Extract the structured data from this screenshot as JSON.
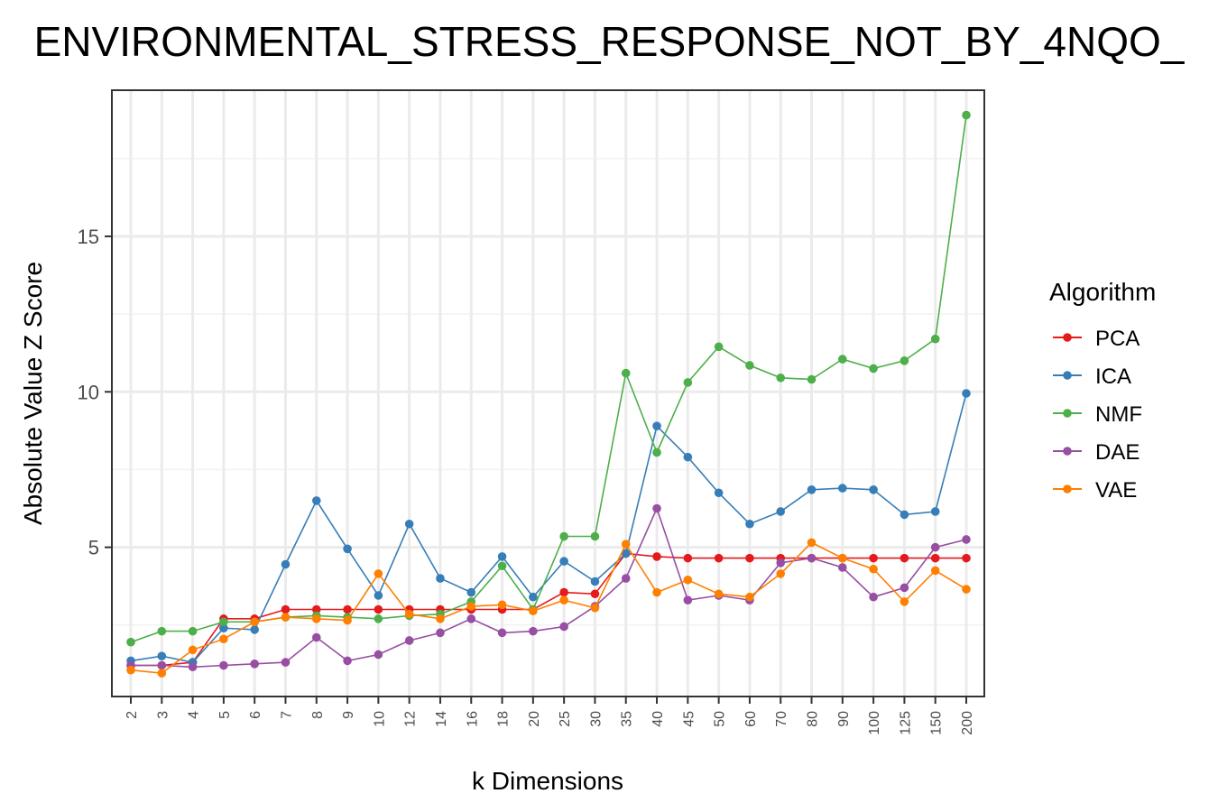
{
  "chart_data": {
    "type": "line",
    "title": "ENVIRONMENTAL_STRESS_RESPONSE_NOT_BY_4NQO_",
    "xlabel": "k Dimensions",
    "ylabel": "Absolute Value Z Score",
    "categories": [
      "2",
      "3",
      "4",
      "5",
      "6",
      "7",
      "8",
      "9",
      "10",
      "12",
      "14",
      "16",
      "18",
      "20",
      "25",
      "30",
      "35",
      "40",
      "45",
      "50",
      "60",
      "70",
      "80",
      "90",
      "100",
      "125",
      "150",
      "200"
    ],
    "yticks": [
      5,
      10,
      15
    ],
    "ylim": [
      0.2,
      19.7
    ],
    "grid": true,
    "legend": {
      "title": "Algorithm",
      "placement": "right"
    },
    "series": [
      {
        "name": "PCA",
        "color": "#E41A1C",
        "values": [
          1.2,
          1.2,
          1.3,
          2.7,
          2.7,
          3.0,
          3.0,
          3.0,
          3.0,
          3.0,
          3.0,
          3.0,
          3.0,
          3.0,
          3.55,
          3.5,
          4.8,
          4.7,
          4.65,
          4.65,
          4.65,
          4.65,
          4.65,
          4.65,
          4.65,
          4.65,
          4.65,
          4.65
        ]
      },
      {
        "name": "ICA",
        "color": "#377EB8",
        "values": [
          1.35,
          1.5,
          1.3,
          2.4,
          2.35,
          4.45,
          6.5,
          4.95,
          3.45,
          5.75,
          4.0,
          3.55,
          4.7,
          3.4,
          4.55,
          3.9,
          4.8,
          8.9,
          7.9,
          6.75,
          5.75,
          6.15,
          6.85,
          6.9,
          6.85,
          6.05,
          6.15,
          9.95
        ]
      },
      {
        "name": "NMF",
        "color": "#4DAF4A",
        "values": [
          1.95,
          2.3,
          2.3,
          2.6,
          2.6,
          2.75,
          2.8,
          2.75,
          2.7,
          2.8,
          2.85,
          3.25,
          4.4,
          3.0,
          5.35,
          5.35,
          10.6,
          8.05,
          10.3,
          11.45,
          10.85,
          10.45,
          10.4,
          11.05,
          10.75,
          11.0,
          11.7,
          18.9
        ]
      },
      {
        "name": "DAE",
        "color": "#984EA3",
        "values": [
          1.2,
          1.2,
          1.15,
          1.2,
          1.25,
          1.3,
          2.1,
          1.35,
          1.55,
          2.0,
          2.25,
          2.7,
          2.25,
          2.3,
          2.45,
          3.1,
          4.0,
          6.25,
          3.3,
          3.45,
          3.3,
          4.5,
          4.65,
          4.35,
          3.4,
          3.7,
          5.0,
          5.25
        ]
      },
      {
        "name": "VAE",
        "color": "#FF7F00",
        "values": [
          1.05,
          0.95,
          1.7,
          2.05,
          2.6,
          2.75,
          2.7,
          2.65,
          4.15,
          2.85,
          2.7,
          3.1,
          3.15,
          2.95,
          3.3,
          3.05,
          5.1,
          3.55,
          3.95,
          3.5,
          3.4,
          4.15,
          5.15,
          4.65,
          4.3,
          3.25,
          4.25,
          3.65
        ]
      }
    ]
  }
}
